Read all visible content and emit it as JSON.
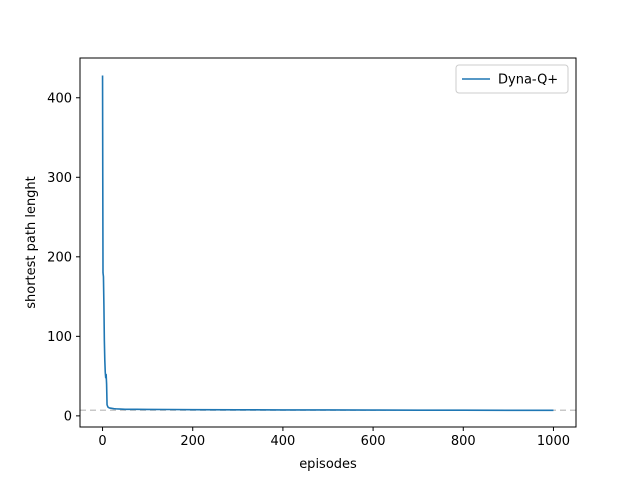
{
  "chart_data": {
    "type": "line",
    "title": "",
    "xlabel": "episodes",
    "ylabel": "shortest path lenght",
    "xlim": [
      -50,
      1050
    ],
    "ylim": [
      -14,
      450
    ],
    "xticks": [
      0,
      200,
      400,
      600,
      800,
      1000
    ],
    "yticks": [
      0,
      100,
      200,
      300,
      400
    ],
    "grid": false,
    "legend_position": "top-right",
    "reference_line": {
      "y": 7,
      "style": "dashed",
      "color": "#c8c8c8"
    },
    "series": [
      {
        "name": "Dyna-Q+",
        "color": "#1f77b4",
        "x": [
          0,
          0.5,
          1,
          2,
          3,
          4,
          5,
          6,
          7,
          8,
          9,
          10,
          12,
          15,
          20,
          25,
          30,
          40,
          50,
          75,
          100,
          150,
          200,
          300,
          400,
          500,
          600,
          700,
          800,
          900,
          1000
        ],
        "y": [
          428,
          300,
          180,
          175,
          140,
          95,
          70,
          55,
          48,
          52,
          40,
          14,
          11,
          10,
          9.5,
          9,
          8.8,
          8.5,
          8.3,
          8.2,
          8.1,
          8,
          7.8,
          7.6,
          7.5,
          7.4,
          7.3,
          7.2,
          7.1,
          7.0,
          7.0
        ]
      }
    ]
  }
}
